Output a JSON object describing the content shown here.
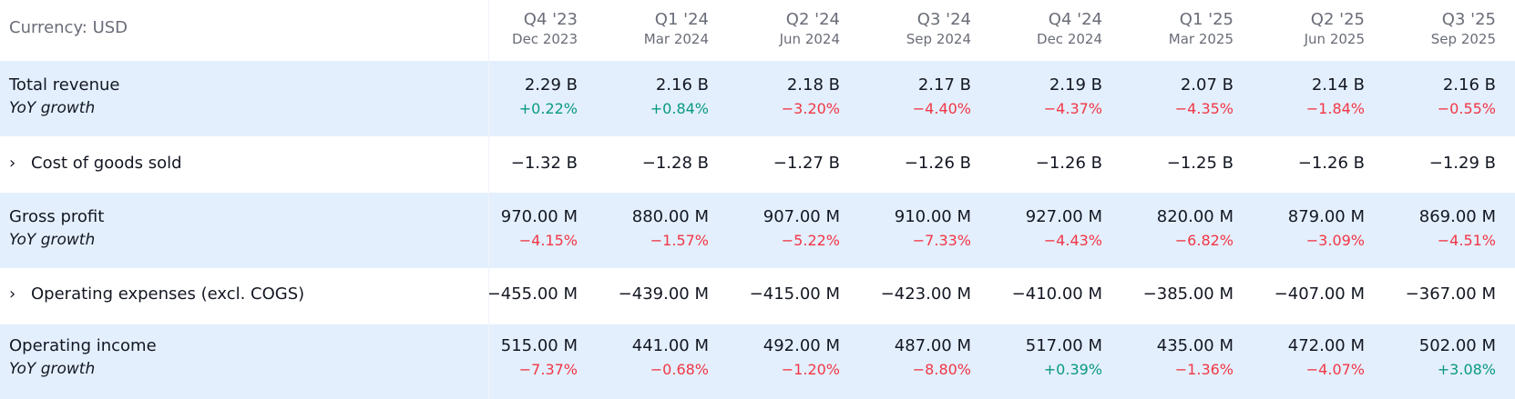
{
  "currency_label": "Currency: USD",
  "periods": [
    {
      "quarter": "Q4 '23",
      "date": "Dec 2023"
    },
    {
      "quarter": "Q1 '24",
      "date": "Mar 2024"
    },
    {
      "quarter": "Q2 '24",
      "date": "Jun 2024"
    },
    {
      "quarter": "Q3 '24",
      "date": "Sep 2024"
    },
    {
      "quarter": "Q4 '24",
      "date": "Dec 2024"
    },
    {
      "quarter": "Q1 '25",
      "date": "Mar 2025"
    },
    {
      "quarter": "Q2 '25",
      "date": "Jun 2025"
    },
    {
      "quarter": "Q3 '25",
      "date": "Sep 2025"
    }
  ],
  "colors": {
    "positive": "#089981",
    "negative": "#f23645",
    "row_highlight": "#e3effd",
    "text": "#131722",
    "muted": "#6a6d78"
  },
  "rows": {
    "total_revenue": {
      "label": "Total revenue",
      "growth_label": "YoY growth",
      "values": [
        "2.29 B",
        "2.16 B",
        "2.18 B",
        "2.17 B",
        "2.19 B",
        "2.07 B",
        "2.14 B",
        "2.16 B"
      ],
      "growth": [
        "+0.22%",
        "+0.84%",
        "−3.20%",
        "−4.40%",
        "−4.37%",
        "−4.35%",
        "−1.84%",
        "−0.55%"
      ]
    },
    "cogs": {
      "expand_icon": "chevron-right-icon",
      "label": "Cost of goods sold",
      "values": [
        "−1.32 B",
        "−1.28 B",
        "−1.27 B",
        "−1.26 B",
        "−1.26 B",
        "−1.25 B",
        "−1.26 B",
        "−1.29 B"
      ]
    },
    "gross_profit": {
      "label": "Gross profit",
      "growth_label": "YoY growth",
      "values": [
        "970.00 M",
        "880.00 M",
        "907.00 M",
        "910.00 M",
        "927.00 M",
        "820.00 M",
        "879.00 M",
        "869.00 M"
      ],
      "growth": [
        "−4.15%",
        "−1.57%",
        "−5.22%",
        "−7.33%",
        "−4.43%",
        "−6.82%",
        "−3.09%",
        "−4.51%"
      ]
    },
    "opex": {
      "expand_icon": "chevron-right-icon",
      "label": "Operating expenses (excl. COGS)",
      "values": [
        "−455.00 M",
        "−439.00 M",
        "−415.00 M",
        "−423.00 M",
        "−410.00 M",
        "−385.00 M",
        "−407.00 M",
        "−367.00 M"
      ]
    },
    "operating_income": {
      "label": "Operating income",
      "growth_label": "YoY growth",
      "values": [
        "515.00 M",
        "441.00 M",
        "492.00 M",
        "487.00 M",
        "517.00 M",
        "435.00 M",
        "472.00 M",
        "502.00 M"
      ],
      "growth": [
        "−7.37%",
        "−0.68%",
        "−1.20%",
        "−8.80%",
        "+0.39%",
        "−1.36%",
        "−4.07%",
        "+3.08%"
      ]
    }
  }
}
